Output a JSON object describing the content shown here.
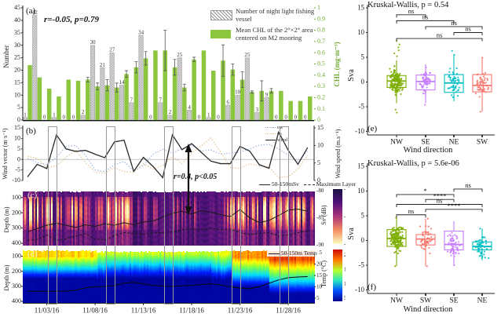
{
  "figure": {
    "panel_a": {
      "letter": "(a)",
      "annotation": "r=-0.05, p=0.79",
      "ylabel": "Number",
      "ylabel_right": "CHL (mg·m⁻³)",
      "legend_vessel": "Number of night light fishing vessel",
      "legend_chl": "Mean CHL of the 2°×2° area centered on M2 mooring"
    },
    "panel_b": {
      "letter": "(b)",
      "annotation": "r=0.4, p<0.05",
      "ylabel": "Wind vector (m·s⁻¹)",
      "ylabel_right": "Wind speed (m.s⁻¹)",
      "legend": [
        "ew",
        "ns",
        "wind"
      ]
    },
    "panel_c": {
      "letter": "(c)",
      "ylabel": "Depth (m)",
      "ylabel_right": "Sv (dB)",
      "legend_solid": "50-150mSv",
      "legend_dashed": "Maximum Layer"
    },
    "panel_d": {
      "letter": "(d)",
      "ylabel": "Depth (m)",
      "ylabel_right": "Temp (°C)",
      "legend_solid": "50-150m Temp"
    },
    "panel_e": {
      "letter": "(e)",
      "title": "Kruskal-Wallis, p = 0.54",
      "ylabel": "Sva",
      "xlabel": "Wind direction"
    },
    "panel_f": {
      "letter": "(f)",
      "title": "Kruskal-Wallis, p = 5.6e-06",
      "ylabel": "Sva",
      "xlabel": "Wind direction"
    }
  },
  "chart_data": [
    {
      "id": "a",
      "type": "bar",
      "days": 30,
      "series": [
        {
          "name": "Number of night light fishing vessel",
          "axis": "left",
          "values": [
            1,
            42,
            0,
            1,
            0,
            0,
            2,
            30,
            21,
            27,
            14,
            7,
            34,
            0,
            7,
            2,
            25,
            4,
            0,
            1,
            0,
            6,
            10,
            25,
            3,
            9,
            0,
            0,
            0,
            0
          ]
        },
        {
          "name": "Mean CHL of the 2°×2° area centered on M2 mooring",
          "axis": "right",
          "values": [
            0.49,
            0.38,
            0.28,
            0.21,
            0.36,
            0.35,
            0.36,
            0.3,
            0.31,
            0.29,
            0.41,
            0.47,
            0.55,
            0.62,
            0.62,
            0.47,
            0.29,
            0.54,
            0.62,
            0.44,
            0.53,
            0.45,
            0.36,
            0.25,
            0.26,
            0.26,
            0.26,
            0.17,
            0.17,
            0.21
          ],
          "errors": [
            0,
            0,
            0,
            0,
            0,
            0,
            0.02,
            0.03,
            0.05,
            0.04,
            0.03,
            0.05,
            0.06,
            0,
            0.18,
            0.07,
            0.03,
            0.02,
            0,
            0,
            0.14,
            0.05,
            0.07,
            0.01,
            0.09,
            0.02,
            0,
            0,
            0,
            0
          ]
        }
      ],
      "ylim_left": [
        0,
        45
      ],
      "yticks_left": [
        0,
        5,
        10,
        15,
        20,
        25,
        30,
        35,
        40,
        45
      ],
      "ylim_right": [
        0,
        1
      ],
      "yticks_right": [
        0,
        0.1,
        0.2,
        0.3,
        0.4,
        0.5,
        0.6,
        0.7,
        0.8,
        0.9,
        1
      ],
      "colors": {
        "chl_bar": "#8CC63F",
        "axis_right": "#71A834",
        "hatch": "#909090"
      }
    },
    {
      "id": "b",
      "type": "line",
      "series": [
        {
          "name": "ew",
          "axis": "left",
          "style": "dotted",
          "color": "#8FA9D6",
          "values": [
            0.5,
            -1.5,
            -2.5,
            1.0,
            6.3,
            6.6,
            2.0,
            -5.0,
            -5.8,
            -2.5,
            -1.0,
            -5.5,
            -3.0,
            2.5,
            4.8,
            3.0,
            5.2,
            6.8,
            4.0,
            4.5,
            2.5,
            3.0,
            3.5,
            5.0,
            6.8,
            7.2,
            5.0,
            2.0,
            -1.0,
            4.0
          ]
        },
        {
          "name": "ns",
          "axis": "left",
          "style": "dotted",
          "color": "#DFB97E",
          "values": [
            1.5,
            0.5,
            -4.0,
            -3.0,
            1.0,
            4.3,
            -1.5,
            -6.0,
            -6.5,
            -4.0,
            -5.8,
            -6.0,
            -2.0,
            -4.5,
            -3.0,
            1.5,
            -2.0,
            3.0,
            6.5,
            10.2,
            3.5,
            -3.8,
            -4.2,
            -2.0,
            -3.0,
            -3.5,
            -8.6,
            -8.2,
            -4.5,
            2.0
          ]
        },
        {
          "name": "wind",
          "axis": "right",
          "style": "solid",
          "color": "#2b2b2b",
          "values": [
            1.0,
            4.6,
            3.4,
            13.0,
            9.0,
            8.3,
            8.6,
            7.5,
            6.5,
            11.0,
            11.5,
            2.6,
            6.6,
            4.0,
            0.8,
            13.0,
            8.8,
            10.5,
            8.0,
            5.5,
            4.8,
            4.8,
            9.7,
            8.4,
            4.5,
            3.5,
            13.8,
            8.6,
            4.6,
            9.4
          ]
        }
      ],
      "ylim_left": [
        -10,
        15
      ],
      "yticks_left": [
        15,
        10,
        5,
        0,
        -5,
        -10
      ],
      "ylim_right": [
        0,
        15
      ],
      "yticks_right": [
        15,
        10,
        5,
        0
      ],
      "highlight_days": [
        4,
        10,
        16,
        23,
        28
      ]
    },
    {
      "id": "c",
      "type": "heatmap",
      "variable": "Sv (dB)",
      "clim": [
        -100,
        -80
      ],
      "colorbar_ticks": [
        -80,
        -90,
        -100
      ],
      "depth_ticks": [
        100,
        200,
        300,
        400
      ],
      "line_axis_ticks": [
        -80,
        -85,
        -90
      ],
      "sv_line_50_150m": [
        -87.6,
        -87.0,
        -86.4,
        -86.0,
        -86.4,
        -86.8,
        -86.3,
        -86.6,
        -86.1,
        -86.4,
        -85.9,
        -86.3,
        -85.8,
        -85.6,
        -84.9,
        -84.2,
        -83.8,
        -84.3,
        -83.7,
        -84.0,
        -84.4,
        -84.8,
        -83.5,
        -85.0,
        -85.9,
        -85.5,
        -84.6,
        -83.6,
        -83.4,
        -83.8
      ],
      "maximum_layer_depth": [
        382,
        375,
        345,
        380,
        370,
        352,
        336,
        372,
        378,
        348,
        330,
        336,
        340,
        332,
        330,
        326,
        310,
        306,
        310,
        302,
        312,
        306,
        330,
        342,
        336,
        330,
        352,
        346,
        330,
        320
      ]
    },
    {
      "id": "d",
      "type": "heatmap",
      "variable": "Temp (°C)",
      "clim": [
        4,
        22
      ],
      "colorbar_ticks": [
        20,
        15,
        10,
        5
      ],
      "right_axis_ticks": [
        25,
        20,
        15,
        10,
        5
      ],
      "depth_ticks": [
        100,
        200,
        300,
        400
      ],
      "temp_line_50_150m": [
        8.0,
        8.0,
        8.0,
        8.0,
        8.1,
        8.5,
        9.6,
        10.0,
        10.1,
        10.6,
        11.6,
        12.0,
        11.3,
        10.6,
        10.3,
        10.2,
        10.4,
        10.6,
        11.0,
        11.3,
        10.8,
        10.0,
        9.4,
        9.2,
        10.1,
        11.6,
        13.0,
        14.0,
        14.3,
        14.5
      ],
      "dates": [
        "11/03/16",
        "11/08/16",
        "11/13/16",
        "11/18/16",
        "11/23/16",
        "11/28/16"
      ],
      "date_days": [
        3,
        8,
        13,
        18,
        23,
        28
      ]
    },
    {
      "id": "e",
      "type": "boxplot",
      "title": "Kruskal-Wallis, p = 0.54",
      "ylabel": "Sva",
      "xlabel": "Wind direction",
      "ylim": [
        -10,
        15
      ],
      "yticks": [
        15,
        10,
        5,
        0,
        -5,
        -10
      ],
      "groups": [
        {
          "label": "NW",
          "color": "#7CAE00",
          "median": 0.2,
          "q1": -1.1,
          "q3": 1.3,
          "lo": -4.3,
          "hi": 4.4,
          "n": 160,
          "pmin": -6.2,
          "pmax": 8.3,
          "extra_points": [
            5.2,
            5.8,
            6.4,
            7.0,
            7.6,
            8.3,
            -5.6,
            -6.2
          ]
        },
        {
          "label": "SE",
          "color": "#C77CFF",
          "median": 0.1,
          "q1": -1.6,
          "q3": 1.4,
          "lo": -4.3,
          "hi": 3.6,
          "n": 60,
          "pmin": -4.6,
          "pmax": 3.6,
          "extra_points": [
            -4.6
          ]
        },
        {
          "label": "NE",
          "color": "#00BFC4",
          "median": -0.2,
          "q1": -2.1,
          "q3": 1.5,
          "lo": -3.9,
          "hi": 5.6,
          "n": 55,
          "pmin": -3.9,
          "pmax": 6.3,
          "extra_points": [
            5.5,
            6.3
          ]
        },
        {
          "label": "SW",
          "color": "#F8766D",
          "median": -0.7,
          "q1": -2.0,
          "q3": 1.5,
          "lo": -6.0,
          "hi": 4.9,
          "n": 55,
          "pmin": -6.1,
          "pmax": 5.0,
          "extra_points": [
            4.9,
            -6.0
          ]
        }
      ],
      "brackets": [
        {
          "a": 0,
          "b": 1,
          "label": "ns",
          "y": 13.6
        },
        {
          "a": 0,
          "b": 2,
          "label": "ns",
          "y": 12.4
        },
        {
          "a": 1,
          "b": 3,
          "label": "ns",
          "y": 11.2
        },
        {
          "a": 2,
          "b": 3,
          "label": "ns",
          "y": 10.0
        },
        {
          "a": 0,
          "b": 3,
          "label": "ns",
          "y": 8.8
        }
      ]
    },
    {
      "id": "f",
      "type": "boxplot",
      "title": "Kruskal-Wallis, p = 5.6e-06",
      "ylabel": "Sva",
      "xlabel": "Wind direction",
      "ylim": [
        -10,
        15
      ],
      "yticks": [
        15,
        10,
        5,
        0,
        -5,
        -10
      ],
      "groups": [
        {
          "label": "NW",
          "color": "#7CAE00",
          "median": 0.4,
          "q1": -1.2,
          "q3": 2.2,
          "lo": -5.2,
          "hi": 4.6,
          "n": 170,
          "pmin": -5.3,
          "pmax": 4.7,
          "extra_points": [
            4.6,
            -5.2
          ]
        },
        {
          "label": "SW",
          "color": "#F8766D",
          "median": 0.3,
          "q1": -0.9,
          "q3": 1.2,
          "lo": -5.2,
          "hi": 4.4,
          "n": 55,
          "pmin": -5.3,
          "pmax": 4.5,
          "extra_points": [
            4.4,
            -5.2
          ]
        },
        {
          "label": "SE",
          "color": "#C77CFF",
          "median": -0.8,
          "q1": -1.9,
          "q3": 1.9,
          "lo": -5.0,
          "hi": 3.9,
          "n": 60,
          "pmin": -5.1,
          "pmax": 4.0,
          "extra_points": [
            -5.0
          ]
        },
        {
          "label": "NE",
          "color": "#00BFC4",
          "median": -1.2,
          "q1": -1.9,
          "q3": -0.3,
          "lo": -4.0,
          "hi": 2.4,
          "n": 50,
          "pmin": -4.1,
          "pmax": 2.5,
          "extra_points": [
            2.4
          ]
        }
      ],
      "brackets": [
        {
          "a": 2,
          "b": 3,
          "label": "ns",
          "y": 10.4
        },
        {
          "a": 0,
          "b": 2,
          "label": "*",
          "y": 9.3
        },
        {
          "a": 1,
          "b": 2,
          "label": "****",
          "y": 8.3
        },
        {
          "a": 0,
          "b": 3,
          "label": "ns",
          "y": 7.3
        },
        {
          "a": 1,
          "b": 3,
          "label": "****",
          "y": 6.3
        },
        {
          "a": 0,
          "b": 1,
          "label": "ns",
          "y": 5.2
        }
      ]
    }
  ]
}
